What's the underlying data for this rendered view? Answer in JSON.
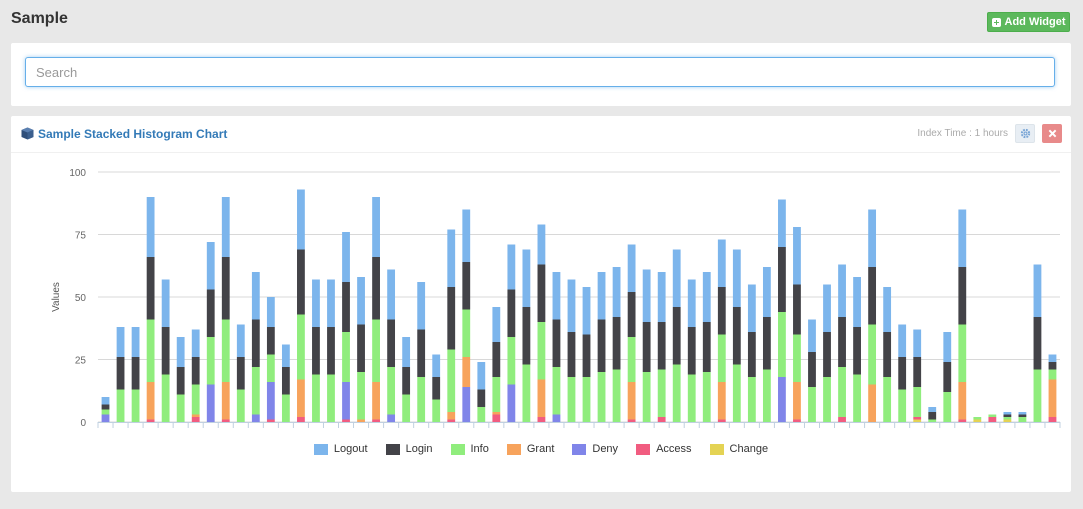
{
  "page": {
    "title": "Sample",
    "add_widget_label": "Add Widget"
  },
  "search": {
    "placeholder": "Search",
    "value": ""
  },
  "widget": {
    "title": "Sample Stacked Histogram Chart",
    "index_time": "Index Time : 1 hours"
  },
  "icons": {
    "widget": "cube-icon",
    "add": "plus-icon",
    "settings": "gear-icon",
    "close": "close-icon"
  },
  "colors": {
    "accent": "#337ab7",
    "add_button": "#5cb85c",
    "close_button": "#e88a8a"
  },
  "chart_data": {
    "type": "bar",
    "stacked": true,
    "ylabel": "Values",
    "xlabel": "",
    "ylim": [
      0,
      100
    ],
    "yticks": [
      0,
      25,
      50,
      75,
      100
    ],
    "grid": true,
    "legend_position": "bottom",
    "series": [
      {
        "name": "Logout",
        "color": "#7cb5ec",
        "values": [
          3,
          12,
          12,
          24,
          19,
          12,
          11,
          19,
          24,
          13,
          19,
          12,
          9,
          24,
          19,
          19,
          20,
          19,
          24,
          20,
          12,
          19,
          9,
          23,
          21,
          11,
          14,
          18,
          23,
          16,
          19,
          21,
          19,
          19,
          20,
          19,
          21,
          20,
          23,
          19,
          20,
          19,
          23,
          19,
          20,
          19,
          23,
          13,
          19,
          21,
          20,
          23,
          18,
          13,
          11,
          2,
          12,
          23,
          0,
          0,
          1,
          1,
          21,
          3
        ]
      },
      {
        "name": "Login",
        "color": "#434348",
        "values": [
          2,
          13,
          13,
          25,
          19,
          11,
          11,
          19,
          25,
          13,
          19,
          11,
          11,
          26,
          19,
          19,
          20,
          19,
          25,
          19,
          11,
          19,
          9,
          25,
          19,
          7,
          14,
          19,
          23,
          23,
          19,
          18,
          17,
          21,
          21,
          18,
          20,
          19,
          23,
          19,
          20,
          19,
          23,
          18,
          21,
          26,
          20,
          14,
          18,
          20,
          19,
          23,
          18,
          13,
          12,
          3,
          12,
          23,
          0,
          0,
          1,
          1,
          21,
          3
        ]
      },
      {
        "name": "Info",
        "color": "#90ed7d",
        "values": [
          2,
          13,
          13,
          25,
          19,
          11,
          12,
          19,
          25,
          13,
          19,
          11,
          11,
          26,
          19,
          19,
          20,
          19,
          25,
          19,
          11,
          18,
          9,
          25,
          19,
          6,
          14,
          19,
          23,
          23,
          19,
          18,
          18,
          20,
          21,
          18,
          20,
          19,
          23,
          19,
          20,
          19,
          23,
          18,
          21,
          26,
          19,
          14,
          18,
          20,
          19,
          24,
          18,
          13,
          12,
          1,
          12,
          23,
          1,
          1,
          1,
          2,
          21,
          4
        ]
      },
      {
        "name": "Grant",
        "color": "#f7a35c",
        "values": [
          0,
          0,
          0,
          15,
          0,
          0,
          1,
          0,
          15,
          0,
          0,
          0,
          0,
          15,
          0,
          0,
          0,
          1,
          15,
          0,
          0,
          0,
          0,
          3,
          12,
          0,
          1,
          0,
          0,
          15,
          0,
          0,
          0,
          0,
          0,
          15,
          0,
          0,
          0,
          0,
          0,
          15,
          0,
          0,
          0,
          0,
          15,
          0,
          0,
          0,
          0,
          15,
          0,
          0,
          0,
          0,
          0,
          15,
          0,
          0,
          0,
          0,
          0,
          15
        ]
      },
      {
        "name": "Deny",
        "color": "#8085e9",
        "values": [
          3,
          0,
          0,
          0,
          0,
          0,
          0,
          15,
          0,
          0,
          3,
          15,
          0,
          0,
          0,
          0,
          15,
          0,
          0,
          3,
          0,
          0,
          0,
          0,
          14,
          0,
          0,
          15,
          0,
          0,
          3,
          0,
          0,
          0,
          0,
          0,
          0,
          0,
          0,
          0,
          0,
          0,
          0,
          0,
          0,
          18,
          0,
          0,
          0,
          0,
          0,
          0,
          0,
          0,
          0,
          0,
          0,
          0,
          0,
          0,
          0,
          0,
          0,
          0
        ]
      },
      {
        "name": "Access",
        "color": "#f15c80",
        "values": [
          0,
          0,
          0,
          1,
          0,
          0,
          2,
          0,
          1,
          0,
          0,
          1,
          0,
          2,
          0,
          0,
          1,
          0,
          1,
          0,
          0,
          0,
          0,
          1,
          0,
          0,
          3,
          0,
          0,
          2,
          0,
          0,
          0,
          0,
          0,
          1,
          0,
          2,
          0,
          0,
          0,
          1,
          0,
          0,
          0,
          0,
          1,
          0,
          0,
          2,
          0,
          0,
          0,
          0,
          1,
          0,
          0,
          1,
          0,
          2,
          0,
          0,
          0,
          2
        ]
      },
      {
        "name": "Change",
        "color": "#e4d354",
        "values": [
          0,
          0,
          0,
          0,
          0,
          0,
          0,
          0,
          0,
          0,
          0,
          0,
          0,
          0,
          0,
          0,
          0,
          0,
          0,
          0,
          0,
          0,
          0,
          0,
          0,
          0,
          0,
          0,
          0,
          0,
          0,
          0,
          0,
          0,
          0,
          0,
          0,
          0,
          0,
          0,
          0,
          0,
          0,
          0,
          0,
          0,
          0,
          0,
          0,
          0,
          0,
          0,
          0,
          0,
          1,
          0,
          0,
          0,
          1,
          0,
          1,
          0,
          0,
          0
        ]
      }
    ]
  }
}
